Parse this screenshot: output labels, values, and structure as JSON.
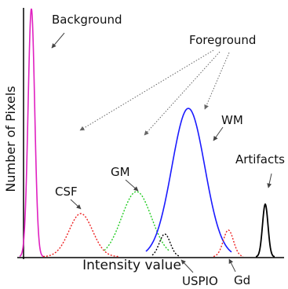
{
  "axes": {
    "ylabel": "Number of Pixels",
    "xlabel": "Intensity value"
  },
  "labels": {
    "background": "Background",
    "foreground": "Foreground",
    "wm": "WM",
    "gm": "GM",
    "csf": "CSF",
    "artifacts": "Artifacts",
    "uspio": "USPIO",
    "gd": "Gd"
  },
  "colors": {
    "background_curve": "#e020c0",
    "wm_curve": "#1a1aff",
    "gm_curve": "#22cc22",
    "csf_curve": "#ee2222",
    "artifacts_curve": "#000000",
    "uspio_curve": "#000000",
    "gd_curve": "#ee2222",
    "annotation_arrow": "#555555"
  }
}
